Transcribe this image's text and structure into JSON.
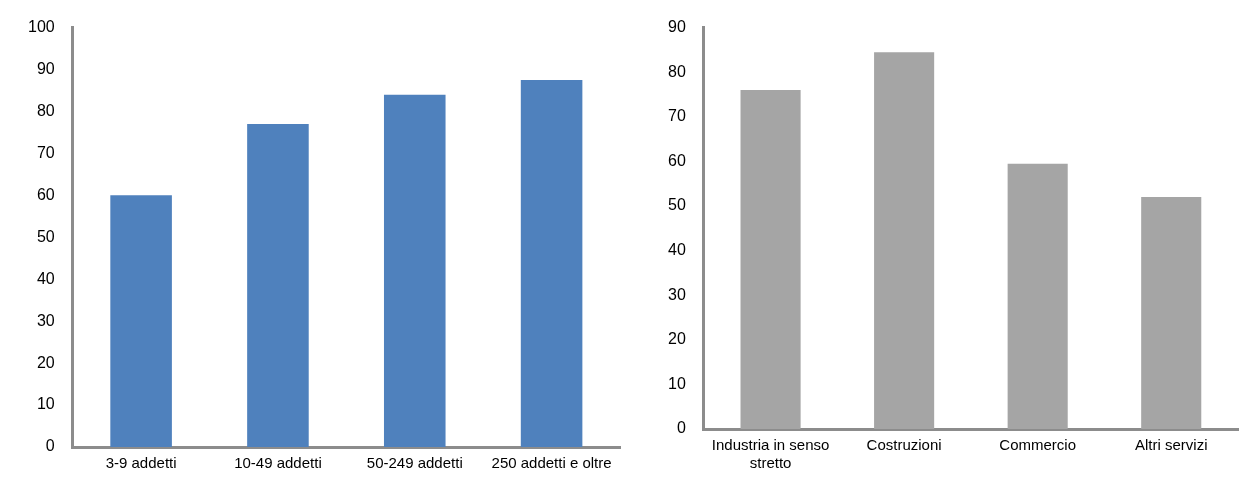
{
  "chart_data": [
    {
      "type": "bar",
      "categories": [
        "3-9 addetti",
        "10-49 addetti",
        "50-249 addetti",
        "250 addetti e oltre"
      ],
      "values": [
        60,
        77,
        84,
        87.5
      ],
      "color": "#4f81bd",
      "ylim": [
        0,
        100
      ],
      "yticks": [
        0,
        10,
        20,
        30,
        40,
        50,
        60,
        70,
        80,
        90,
        100
      ],
      "grid": false,
      "legend": false
    },
    {
      "type": "bar",
      "categories": [
        "Industria in senso stretto",
        "Costruzioni",
        "Commercio",
        "Altri servizi"
      ],
      "values": [
        76,
        84.5,
        59.5,
        52
      ],
      "color": "#a5a5a5",
      "ylim": [
        0,
        90
      ],
      "yticks": [
        0,
        10,
        20,
        30,
        40,
        50,
        60,
        70,
        80,
        90
      ],
      "grid": false,
      "legend": false
    }
  ]
}
